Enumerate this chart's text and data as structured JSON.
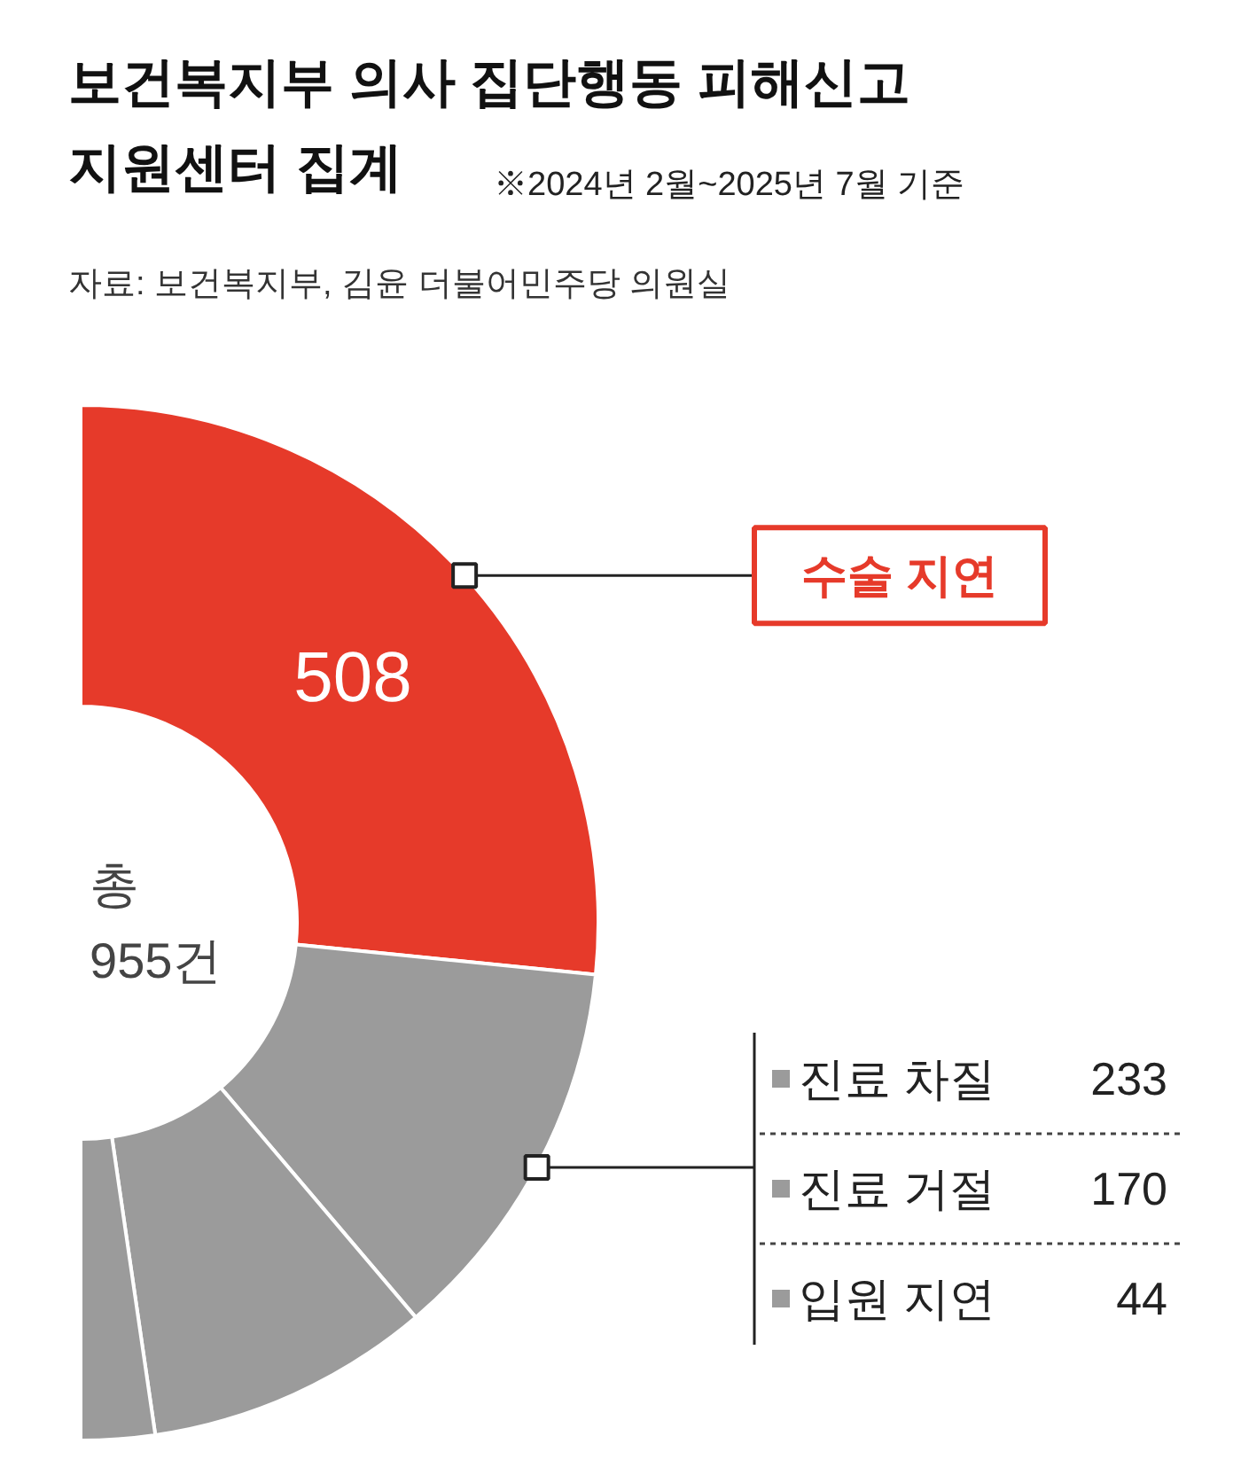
{
  "chart_data": {
    "type": "donut",
    "title": "보건복지부 의사 집단행동 피해신고\n지원센터 집계",
    "subtitle": "※2024년 2월~2025년 7월 기준",
    "categories": [
      "수술 지연",
      "진료 차질",
      "진료 거절",
      "입원 지연"
    ],
    "values": [
      508,
      233,
      170,
      44
    ],
    "colors": [
      "#e63a2a",
      "#9b9b9b",
      "#9b9b9b",
      "#9b9b9b"
    ],
    "data_labels": true,
    "legend": "bottom right",
    "annotations": [
      "자료: 보건복지부, 김윤 더불어민주당 의원실",
      "총\n955건"
    ]
  }
}
